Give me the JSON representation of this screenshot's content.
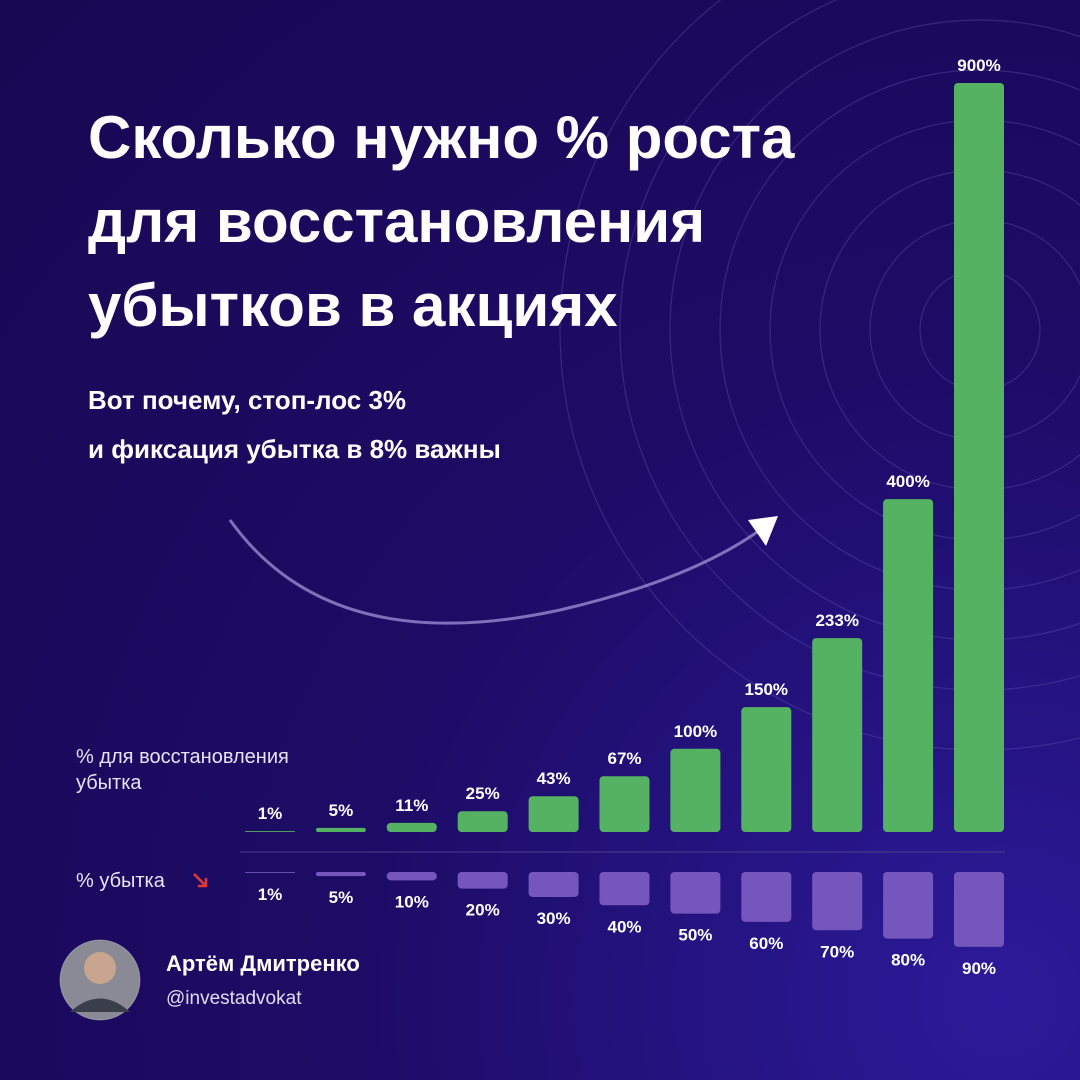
{
  "chart_data": {
    "type": "bar",
    "title": [
      "Сколько нужно % роста",
      "для восстановления",
      "убытков в акциях"
    ],
    "subtitle": [
      "Вот почему, стоп-лос 3%",
      "и фиксация убытка в 8% важны"
    ],
    "ylim": [
      0,
      900
    ],
    "series": [
      {
        "name": "% для восстановления убытка",
        "color": "#55b263",
        "values": [
          1,
          5,
          11,
          25,
          43,
          67,
          100,
          150,
          233,
          400,
          900
        ],
        "value_labels": [
          "1%",
          "5%",
          "11%",
          "25%",
          "43%",
          "67%",
          "100%",
          "150%",
          "233%",
          "400%",
          "900%"
        ]
      },
      {
        "name": "% убытка",
        "color": "#7456bd",
        "values": [
          1,
          5,
          10,
          20,
          30,
          40,
          50,
          60,
          70,
          80,
          90
        ],
        "value_labels": [
          "1%",
          "5%",
          "10%",
          "20%",
          "30%",
          "40%",
          "50%",
          "60%",
          "70%",
          "80%",
          "90%"
        ]
      }
    ]
  },
  "author": {
    "name": "Артём Дмитренко",
    "handle": "@investadvokat"
  }
}
